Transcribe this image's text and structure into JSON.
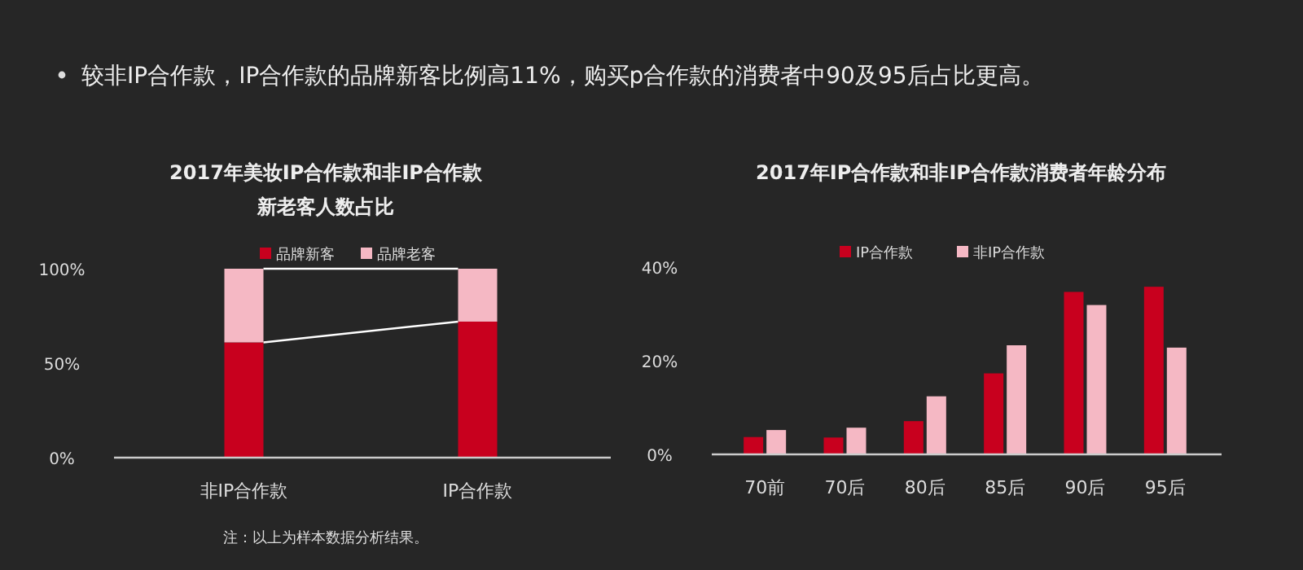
{
  "chart_data": [
    {
      "type": "other",
      "title": "较非IP合作款，IP合作款的品牌新客比例高11%，购买p合作款的消费者中90及95后占比更高。"
    },
    {
      "type": "bar",
      "title": "2017年美妆IP合作款和非IP合作款",
      "subtitle": "新老客人数占比",
      "categories": [
        "非IP合作款",
        "IP合作款"
      ],
      "stacked": true,
      "series": [
        {
          "name": "品牌新客",
          "color": "#c8001e",
          "values": [
            61,
            72
          ]
        },
        {
          "name": "品牌老客",
          "color": "#f5b8c4",
          "values": [
            39,
            28
          ]
        }
      ],
      "ylim": [
        0,
        100
      ],
      "yticks": [
        {
          "value": 0,
          "label": "0%"
        },
        {
          "value": 50,
          "label": "50%"
        },
        {
          "value": 100,
          "label": "100%"
        }
      ],
      "legend": "top",
      "annotations": [
        "注：以上为样本数据分析结果。"
      ]
    },
    {
      "type": "bar",
      "title": "2017年IP合作款和非IP合作款消费者年龄分布",
      "categories": [
        "70前",
        "70后",
        "80后",
        "85后",
        "90后",
        "95后"
      ],
      "series": [
        {
          "name": "IP合作款",
          "color": "#c8001e",
          "values": [
            3.7,
            3.6,
            7.1,
            17.3,
            34.7,
            35.8
          ]
        },
        {
          "name": "非IP合作款",
          "color": "#f5b8c4",
          "values": [
            5.2,
            5.7,
            12.4,
            23.3,
            31.9,
            22.8
          ]
        }
      ],
      "ylim": [
        0,
        40
      ],
      "yticks": [
        {
          "value": 0,
          "label": "0%"
        },
        {
          "value": 20,
          "label": "20%"
        },
        {
          "value": 40,
          "label": "40%"
        }
      ],
      "legend": "top"
    }
  ]
}
